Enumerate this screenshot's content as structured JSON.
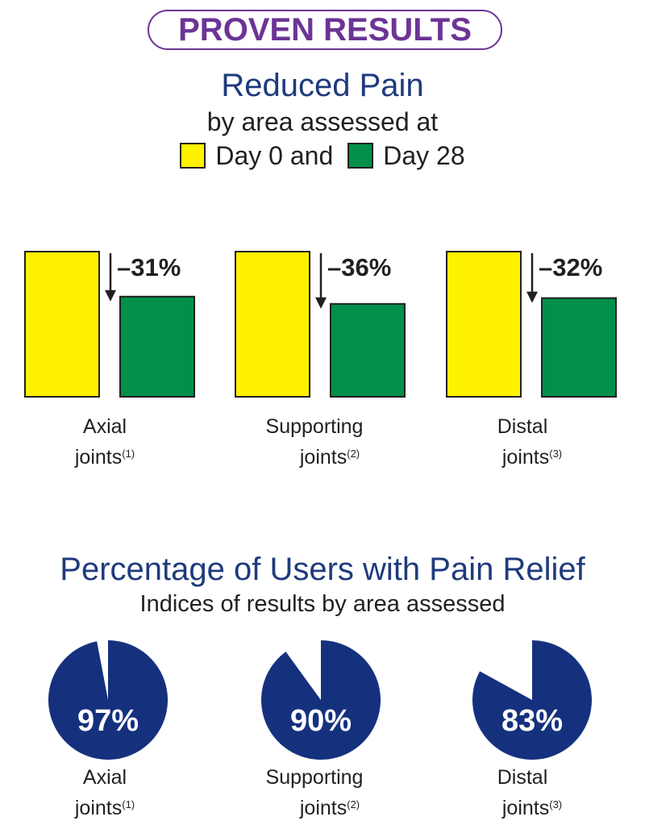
{
  "header": {
    "badge": "PROVEN RESULTS"
  },
  "section1": {
    "title": "Reduced Pain",
    "subtitle": "by area assessed at",
    "legend": [
      {
        "label": "Day 0 and",
        "color": "#fff200"
      },
      {
        "label": "Day 28",
        "color": "#00904a"
      }
    ]
  },
  "section2": {
    "title": "Percentage of Users with Pain Relief",
    "subtitle": "Indices of results by area assessed"
  },
  "chart_data": [
    {
      "type": "bar",
      "categories": [
        "Axial joints",
        "Supporting joints",
        "Distal joints"
      ],
      "category_lines": [
        {
          "line1": "Axial",
          "line2": "joints",
          "note": "(1)"
        },
        {
          "line1": "Supporting",
          "line2": "joints",
          "note": "(2)"
        },
        {
          "line1": "Distal",
          "line2": "joints",
          "note": "(3)"
        }
      ],
      "series": [
        {
          "name": "Day 0",
          "values": [
            100,
            100,
            100
          ],
          "color": "#fff200"
        },
        {
          "name": "Day 28",
          "values": [
            69,
            64,
            68
          ],
          "color": "#00904a"
        }
      ],
      "change_labels": [
        "–31%",
        "–36%",
        "–32%"
      ]
    },
    {
      "type": "pie",
      "categories": [
        "Axial joints",
        "Supporting joints",
        "Distal joints"
      ],
      "category_lines": [
        {
          "line1": "Axial",
          "line2": "joints",
          "note": "(1)"
        },
        {
          "line1": "Supporting",
          "line2": "joints",
          "note": "(2)"
        },
        {
          "line1": "Distal",
          "line2": "joints",
          "note": "(3)"
        }
      ],
      "values": [
        97,
        90,
        83
      ],
      "labels": [
        "97%",
        "90%",
        "83%"
      ],
      "color": "#15317e"
    }
  ]
}
